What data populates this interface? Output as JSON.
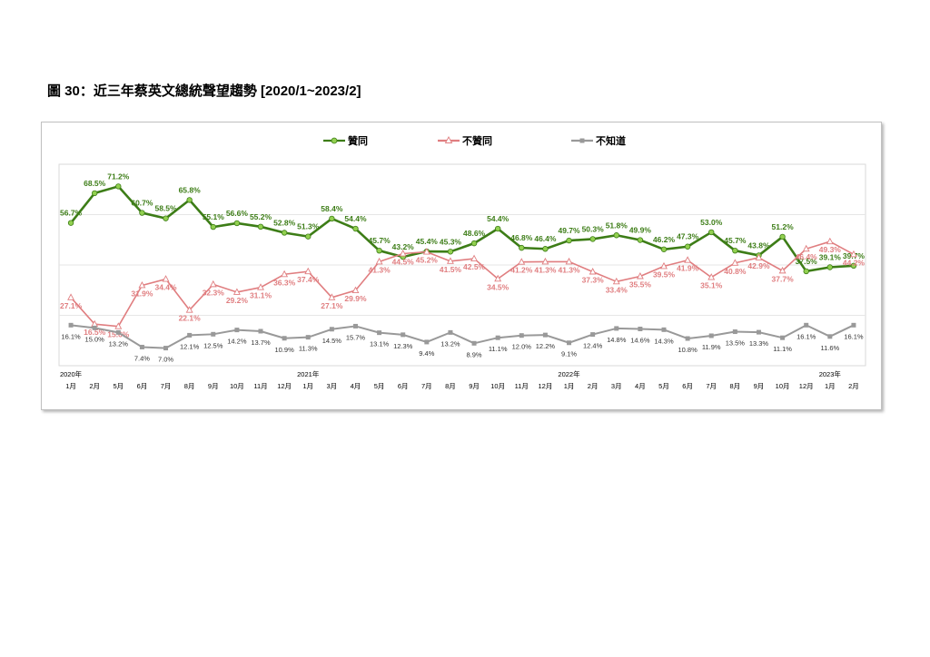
{
  "figure_title": "圖 30：近三年蔡英文總統聲望趨勢  [2020/1~2023/2]",
  "colors": {
    "approve": "#3d7d17",
    "approve_marker": "#92d050",
    "disapprove": "#e07e80",
    "unknown": "#999999"
  },
  "chart_data": {
    "type": "line",
    "title": "",
    "ylim": [
      0,
      80
    ],
    "grid": "horizontal",
    "legend_position": "top",
    "year_labels": [
      {
        "index": 0,
        "label": "2020年"
      },
      {
        "index": 10,
        "label": "2021年"
      },
      {
        "index": 21,
        "label": "2022年"
      },
      {
        "index": 32,
        "label": "2023年"
      }
    ],
    "categories": [
      "1月",
      "2月",
      "5月",
      "6月",
      "7月",
      "8月",
      "9月",
      "10月",
      "11月",
      "12月",
      "1月",
      "3月",
      "4月",
      "5月",
      "6月",
      "7月",
      "8月",
      "9月",
      "10月",
      "11月",
      "12月",
      "1月",
      "2月",
      "3月",
      "4月",
      "5月",
      "6月",
      "7月",
      "8月",
      "9月",
      "10月",
      "12月",
      "1月",
      "2月"
    ],
    "series": [
      {
        "name": "贊同",
        "marker": "circle",
        "values": [
          56.7,
          68.5,
          71.2,
          60.7,
          58.5,
          65.8,
          55.1,
          56.6,
          55.2,
          52.8,
          51.3,
          58.4,
          54.4,
          45.7,
          43.2,
          45.4,
          45.3,
          48.6,
          54.4,
          46.8,
          46.4,
          49.7,
          50.3,
          51.8,
          49.9,
          46.2,
          47.3,
          53.0,
          45.7,
          43.8,
          51.2,
          37.5,
          39.1,
          39.7
        ]
      },
      {
        "name": "不贊同",
        "marker": "triangle",
        "values": [
          27.1,
          16.5,
          15.6,
          31.9,
          34.4,
          22.1,
          32.3,
          29.2,
          31.1,
          36.3,
          37.4,
          27.1,
          29.9,
          41.3,
          44.5,
          45.2,
          41.5,
          42.5,
          34.5,
          41.2,
          41.3,
          41.3,
          37.3,
          33.4,
          35.5,
          39.5,
          41.9,
          35.1,
          40.8,
          42.9,
          37.7,
          46.4,
          49.3,
          44.2
        ]
      },
      {
        "name": "不知道",
        "marker": "square",
        "values": [
          16.1,
          15.0,
          13.2,
          7.4,
          7.0,
          12.1,
          12.5,
          14.2,
          13.7,
          10.9,
          11.3,
          14.5,
          15.7,
          13.1,
          12.3,
          9.4,
          13.2,
          8.9,
          11.1,
          12.0,
          12.2,
          9.1,
          12.4,
          14.8,
          14.6,
          14.3,
          10.8,
          11.9,
          13.5,
          13.3,
          11.1,
          16.1,
          11.6,
          16.1
        ]
      }
    ]
  }
}
